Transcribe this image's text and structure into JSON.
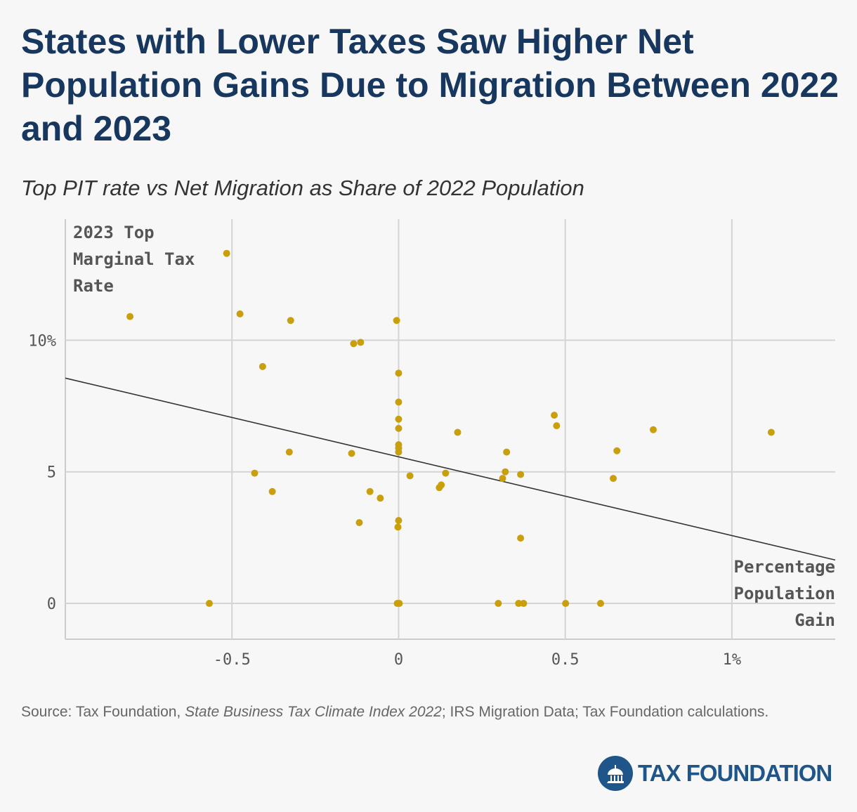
{
  "chart_data": {
    "type": "scatter",
    "title": "States with Lower Taxes Saw Higher Net Population Gains Due to Migration Between 2022 and 2023",
    "subtitle": "Top PIT rate vs Net Migration as Share of 2022 Population",
    "y_label_lines": [
      "2023 Top",
      "Marginal Tax",
      "Rate"
    ],
    "x_label_lines": [
      "Percentage",
      "Population",
      "Gain"
    ],
    "source": [
      "Source: Tax Foundation, ",
      "State Business Tax Climate Index 2022",
      "; IRS Migration Data; Tax Foundation calculations."
    ],
    "brand": "TAX FOUNDATION",
    "color": "#c9a00c",
    "trend_color": "#333333",
    "grid": true,
    "xlim": [
      -1.0,
      1.31
    ],
    "ylim": [
      -1.36,
      14.6
    ],
    "xticks": [
      -0.5,
      0,
      0.5,
      {
        "value": 1,
        "label": "1%"
      }
    ],
    "yticks": [
      0,
      5,
      {
        "value": 10,
        "label": "10%"
      }
    ],
    "x": [
      -0.806,
      -0.516,
      -0.476,
      -0.324,
      -0.006,
      -0.135,
      -0.114,
      -0.408,
      0,
      0,
      0,
      0,
      0,
      0,
      0,
      0.177,
      0.467,
      0.474,
      0.764,
      1.118,
      -0.328,
      -0.141,
      -0.432,
      -0.379,
      -0.086,
      -0.055,
      0.034,
      0.141,
      0.128,
      0.122,
      0.324,
      0.32,
      0.312,
      0.366,
      0.655,
      0.644,
      -0.118,
      0,
      -0.002,
      0.366,
      -0.568,
      -0.004,
      0.002,
      0.299,
      0.36,
      0.375,
      0.501,
      0.606
    ],
    "values": [
      10.9,
      13.3,
      11.0,
      10.75,
      10.75,
      9.87,
      9.92,
      9.0,
      8.75,
      7.65,
      7.0,
      6.65,
      6.03,
      5.9,
      5.75,
      6.5,
      7.15,
      6.75,
      6.6,
      6.5,
      5.75,
      5.7,
      4.95,
      4.25,
      4.25,
      4.0,
      4.85,
      4.95,
      4.5,
      4.4,
      5.75,
      5.0,
      4.75,
      4.9,
      5.8,
      4.75,
      3.07,
      3.15,
      2.9,
      2.48,
      0,
      0,
      0,
      0,
      0,
      0,
      0,
      0
    ],
    "trendline": {
      "x": [
        -1.0,
        1.31
      ],
      "values": [
        8.56,
        1.65
      ]
    }
  }
}
